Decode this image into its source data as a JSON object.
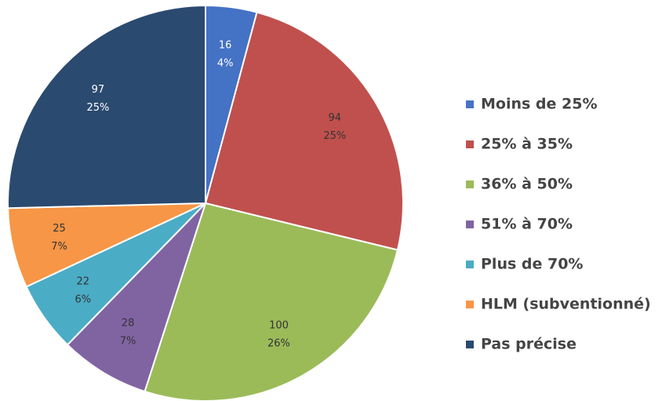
{
  "chart_data": {
    "type": "pie",
    "categories": [
      "Moins de 25%",
      "25% à 35%",
      "36% à 50%",
      "51% à 70%",
      "Plus de 70%",
      "HLM (subventionné)",
      "Pas précise"
    ],
    "values": [
      16,
      94,
      100,
      28,
      22,
      25,
      97
    ],
    "percent_labels": [
      "4%",
      "25%",
      "26%",
      "7%",
      "6%",
      "7%",
      "25%"
    ],
    "colors": [
      "#4472c4",
      "#c0504d",
      "#9bbb59",
      "#8064a2",
      "#4bacc6",
      "#f79646",
      "#2b4a6f"
    ],
    "legend": "right"
  }
}
